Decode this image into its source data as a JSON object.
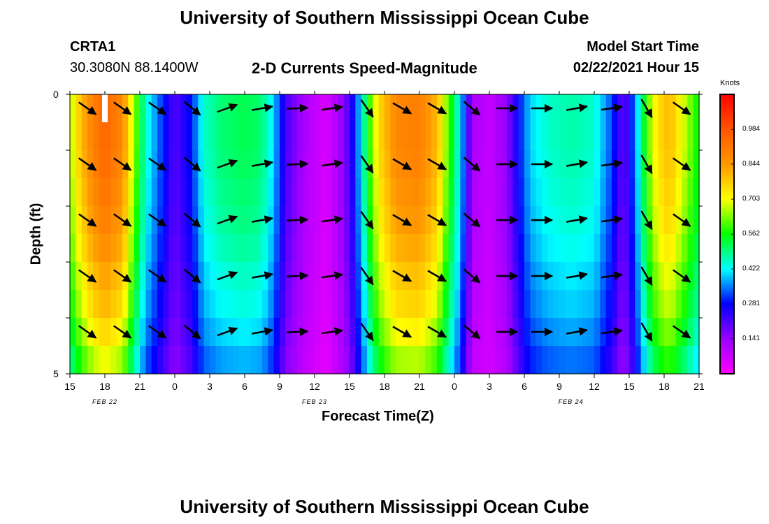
{
  "header": {
    "title": "University of Southern Mississippi Ocean Cube",
    "station_id": "CRTA1",
    "station_coords": "30.3080N 88.1400W",
    "plot_title": "2-D Currents Speed-Magnitude",
    "model_start_label": "Model Start Time",
    "model_start_value": "02/22/2021 Hour 15"
  },
  "footer": {
    "title": "University of Southern Mississippi Ocean Cube"
  },
  "colorbar": {
    "unit_label": "Knots",
    "ticks": [
      "0.984",
      "0.844",
      "0.703",
      "0.562",
      "0.422",
      "0.281",
      "0.141"
    ],
    "tick_values": [
      0.984,
      0.844,
      0.703,
      0.562,
      0.422,
      0.281,
      0.141
    ],
    "range": [
      0.0,
      1.125
    ]
  },
  "colors": {
    "background": "#ffffff",
    "arrow": "#000000",
    "missing_bar": "#ffffff"
  },
  "chart_data": {
    "type": "heatmap",
    "title": "2-D Currents Speed-Magnitude",
    "xlabel": "Forecast Time(Z)",
    "ylabel": "Depth (ft)",
    "x_tick_labels": [
      "15",
      "18",
      "21",
      "0",
      "3",
      "6",
      "9",
      "12",
      "15",
      "18",
      "21",
      "0",
      "3",
      "6",
      "9",
      "12",
      "15",
      "18",
      "21"
    ],
    "x_hours_range": [
      0,
      54
    ],
    "date_labels": [
      {
        "text": "FEB  22",
        "hour": 3
      },
      {
        "text": "FEB  23",
        "hour": 21
      },
      {
        "text": "FEB  24",
        "hour": 43
      }
    ],
    "y_tick_labels": [
      "0",
      "5"
    ],
    "ylim": [
      0,
      5
    ],
    "speed_keyframes": [
      {
        "hour": 0,
        "speed": 0.65
      },
      {
        "hour": 1,
        "speed": 0.8
      },
      {
        "hour": 2,
        "speed": 0.9
      },
      {
        "hour": 3,
        "speed": 0.95
      },
      {
        "hour": 4.5,
        "speed": 0.88
      },
      {
        "hour": 5.5,
        "speed": 0.65
      },
      {
        "hour": 6.5,
        "speed": 0.45
      },
      {
        "hour": 7.5,
        "speed": 0.35
      },
      {
        "hour": 9,
        "speed": 0.2
      },
      {
        "hour": 10.5,
        "speed": 0.3
      },
      {
        "hour": 11.5,
        "speed": 0.45
      },
      {
        "hour": 13,
        "speed": 0.5
      },
      {
        "hour": 15,
        "speed": 0.52
      },
      {
        "hour": 16.5,
        "speed": 0.5
      },
      {
        "hour": 17.5,
        "speed": 0.4
      },
      {
        "hour": 18.5,
        "speed": 0.22
      },
      {
        "hour": 20,
        "speed": 0.12
      },
      {
        "hour": 22,
        "speed": 0.05
      },
      {
        "hour": 23.5,
        "speed": 0.15
      },
      {
        "hour": 24.5,
        "speed": 0.3
      },
      {
        "hour": 25.5,
        "speed": 0.55
      },
      {
        "hour": 26.5,
        "speed": 0.75
      },
      {
        "hour": 28,
        "speed": 0.88
      },
      {
        "hour": 30,
        "speed": 0.9
      },
      {
        "hour": 31.5,
        "speed": 0.8
      },
      {
        "hour": 32.5,
        "speed": 0.6
      },
      {
        "hour": 33.5,
        "speed": 0.42
      },
      {
        "hour": 34.5,
        "speed": 0.12
      },
      {
        "hour": 36,
        "speed": 0.08
      },
      {
        "hour": 37.5,
        "speed": 0.15
      },
      {
        "hour": 38.5,
        "speed": 0.28
      },
      {
        "hour": 39.5,
        "speed": 0.4
      },
      {
        "hour": 41,
        "speed": 0.45
      },
      {
        "hour": 43,
        "speed": 0.47
      },
      {
        "hour": 45,
        "speed": 0.45
      },
      {
        "hour": 46.5,
        "speed": 0.32
      },
      {
        "hour": 47.5,
        "speed": 0.18
      },
      {
        "hour": 48.5,
        "speed": 0.35
      },
      {
        "hour": 49.5,
        "speed": 0.6
      },
      {
        "hour": 50.5,
        "speed": 0.75
      },
      {
        "hour": 51.5,
        "speed": 0.8
      },
      {
        "hour": 52.5,
        "speed": 0.7
      },
      {
        "hour": 54,
        "speed": 0.55
      }
    ],
    "depth_rows": [
      0.25,
      0.75,
      1.25,
      1.75,
      2.25,
      2.75,
      3.25,
      3.75,
      4.25,
      4.75
    ],
    "depth_factors": [
      1.0,
      1.0,
      0.99,
      0.97,
      0.95,
      0.92,
      0.88,
      0.85,
      0.8,
      0.74
    ],
    "arrow_depths": [
      0.25,
      1.25,
      2.25,
      3.25,
      4.25
    ],
    "arrows": [
      {
        "hour": 1.5,
        "dir": 35
      },
      {
        "hour": 4.5,
        "dir": 35
      },
      {
        "hour": 7.5,
        "dir": 35
      },
      {
        "hour": 10.5,
        "dir": 40
      },
      {
        "hour": 13.5,
        "dir": -20
      },
      {
        "hour": 16.5,
        "dir": -10
      },
      {
        "hour": 19.5,
        "dir": -3
      },
      {
        "hour": 22.5,
        "dir": -8
      },
      {
        "hour": 25.5,
        "dir": 55
      },
      {
        "hour": 28.5,
        "dir": 30
      },
      {
        "hour": 31.5,
        "dir": 30
      },
      {
        "hour": 34.5,
        "dir": 40
      },
      {
        "hour": 37.5,
        "dir": 0
      },
      {
        "hour": 40.5,
        "dir": 0
      },
      {
        "hour": 43.5,
        "dir": -10
      },
      {
        "hour": 46.5,
        "dir": -8
      },
      {
        "hour": 49.5,
        "dir": 60
      },
      {
        "hour": 52.5,
        "dir": 35
      }
    ]
  }
}
